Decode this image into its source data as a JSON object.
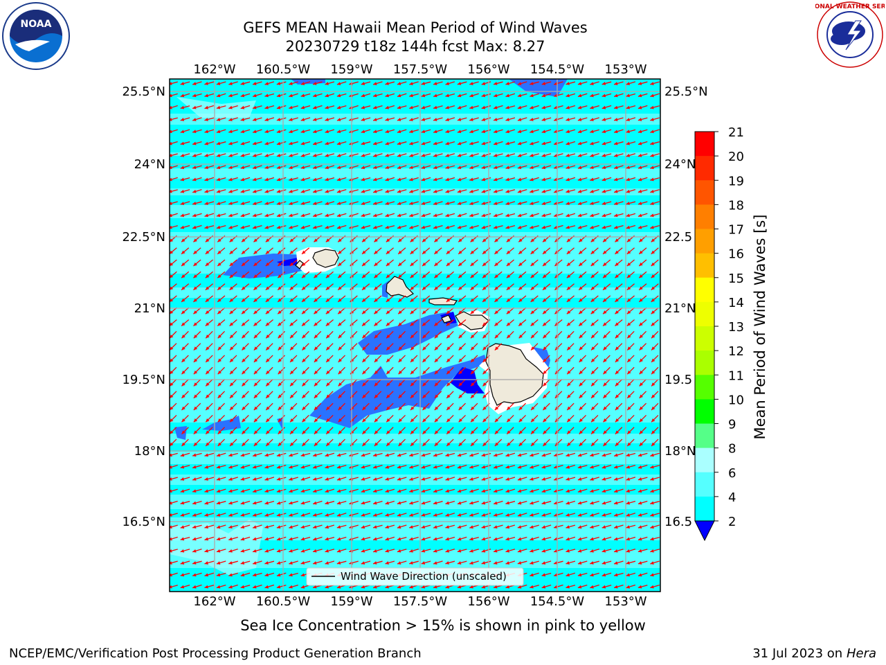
{
  "title": {
    "line1": "GEFS MEAN Hawaii Mean Period of Wind Waves",
    "line2": "20230729 t18z 144h fcst   Max: 8.27"
  },
  "axes": {
    "lon_ticks": [
      "162°W",
      "160.5°W",
      "159°W",
      "157.5°W",
      "156°W",
      "154.5°W",
      "153°W"
    ],
    "lat_ticks_left": [
      "25.5°N",
      "24°N",
      "22.5°N",
      "21°N",
      "19.5°N",
      "18°N",
      "16.5°N"
    ],
    "lat_ticks_right": [
      "25.5°N",
      "24°N",
      "22.5",
      "21°N",
      "19.5",
      "18°N",
      "16.5"
    ]
  },
  "legend": {
    "label": "Wind Wave Direction (unscaled)"
  },
  "colorbar": {
    "label": "Mean Period of Wind Waves [s]",
    "tick_labels": [
      "21",
      "20",
      "19",
      "18",
      "17",
      "16",
      "15",
      "14",
      "13",
      "12",
      "11",
      "10",
      "9",
      "8",
      "6",
      "4",
      "2"
    ],
    "colors": [
      "#ff0000",
      "#ff2a00",
      "#ff5500",
      "#ff7f00",
      "#ff9f00",
      "#ffbf00",
      "#ffff00",
      "#eeff00",
      "#ccff00",
      "#aaff00",
      "#55ff00",
      "#00ff00",
      "#55ff88",
      "#aaffff",
      "#55ffff",
      "#00ffff",
      "#0077ff",
      "#0000ff"
    ],
    "extend": "min"
  },
  "map_colors": {
    "ocean_main": "#55ffff",
    "ocean_light": "#00ffff",
    "low_period": "#2a72ff",
    "very_low": "#0000ff",
    "land": "#efeadb",
    "arrow": "#ff0000"
  },
  "footnote": "Sea Ice Concentration > 15% is shown in pink to yellow",
  "credit_left": "NCEP/EMC/Verification Post Processing Product Generation Branch",
  "credit_right": {
    "date": "31 Jul 2023 on ",
    "host": "Hera"
  },
  "logos": {
    "noaa": "NOAA",
    "nws": "NATIONAL WEATHER SERVICE"
  }
}
